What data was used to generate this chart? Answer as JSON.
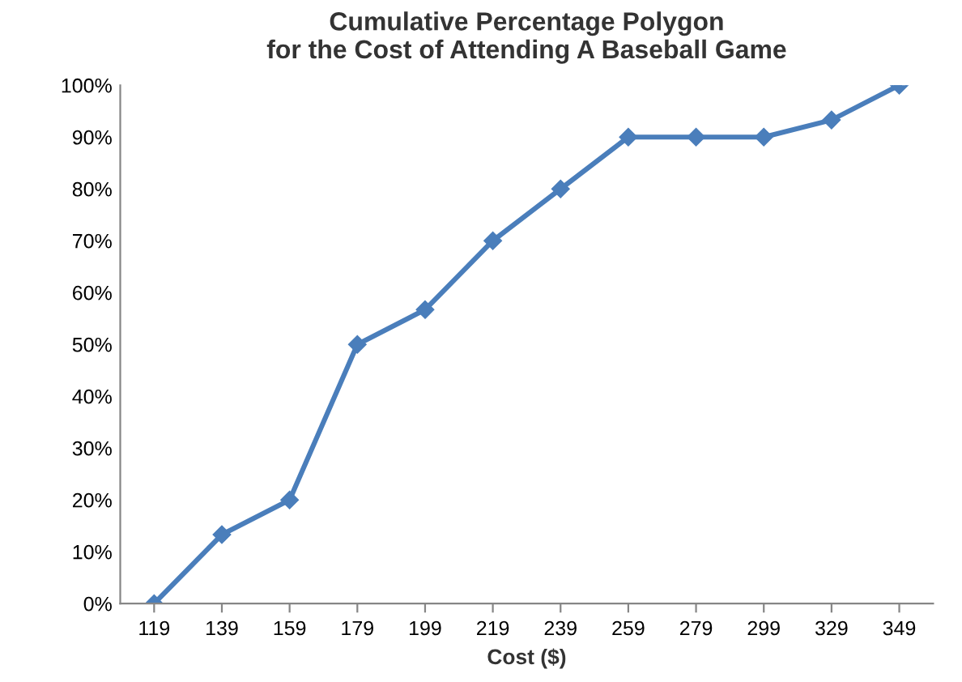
{
  "chart_data": {
    "type": "line",
    "title": "Cumulative Percentage Polygon\nfor the Cost of Attending A Baseball Game",
    "xlabel": "Cost ($)",
    "categories": [
      "119",
      "139",
      "159",
      "179",
      "199",
      "219",
      "239",
      "259",
      "279",
      "299",
      "329",
      "349"
    ],
    "series": [
      {
        "color": "#4a7ebb",
        "values": [
          0,
          13.3,
          20,
          50,
          56.7,
          70,
          80,
          90,
          90,
          90,
          93.3,
          100
        ]
      }
    ],
    "ylim": [
      0,
      100
    ],
    "yticks": [
      {
        "value": 0,
        "label": "0%"
      },
      {
        "value": 10,
        "label": "10%"
      },
      {
        "value": 20,
        "label": "20%"
      },
      {
        "value": 30,
        "label": "30%"
      },
      {
        "value": 40,
        "label": "40%"
      },
      {
        "value": 50,
        "label": "50%"
      },
      {
        "value": 60,
        "label": "60%"
      },
      {
        "value": 70,
        "label": "70%"
      },
      {
        "value": 80,
        "label": "80%"
      },
      {
        "value": 90,
        "label": "90%"
      },
      {
        "value": 100,
        "label": "100%"
      }
    ],
    "marker": "diamond",
    "line_style": "solid",
    "grid": false,
    "legend": false
  }
}
